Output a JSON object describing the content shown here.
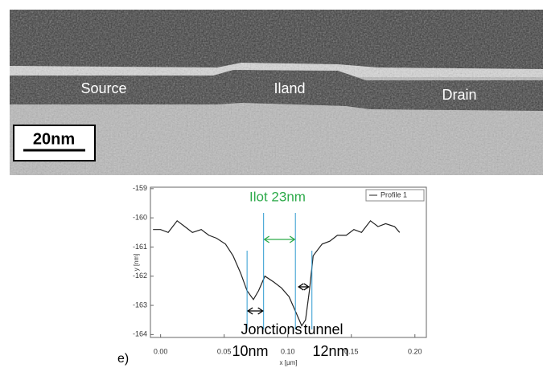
{
  "image": {
    "labels": [
      "Source",
      "Iland",
      "Drain"
    ],
    "scale_bar": "20nm"
  },
  "chart_data": {
    "type": "line",
    "panel_label": "e)",
    "x_label": "x [µm]",
    "y_label": "y [nm]",
    "xlim": [
      -0.008,
      0.209
    ],
    "ylim": [
      -164.1,
      -158.95
    ],
    "xticks": [
      {
        "value": 0,
        "label": "0.00"
      },
      {
        "value": 0.05,
        "label": "0.05"
      },
      {
        "value": 0.1,
        "label": "0.10"
      },
      {
        "value": 0.15,
        "label": "0.15"
      },
      {
        "value": 0.2,
        "label": "0.20"
      }
    ],
    "yticks": [
      -159,
      -160,
      -161,
      -162,
      -163,
      -164
    ],
    "legend": "upper right",
    "series": [
      {
        "name": "Profile 1",
        "color": "#222222",
        "x": [
          -0.006,
          0,
          0.006,
          0.013,
          0.019,
          0.025,
          0.032,
          0.038,
          0.044,
          0.051,
          0.057,
          0.063,
          0.068,
          0.073,
          0.077,
          0.082,
          0.089,
          0.095,
          0.101,
          0.106,
          0.111,
          0.114,
          0.117,
          0.12,
          0.127,
          0.133,
          0.139,
          0.146,
          0.152,
          0.158,
          0.165,
          0.171,
          0.177,
          0.184,
          0.188
        ],
        "values": [
          -160.4,
          -160.4,
          -160.5,
          -160.1,
          -160.3,
          -160.5,
          -160.4,
          -160.6,
          -160.7,
          -160.9,
          -161.3,
          -161.9,
          -162.5,
          -162.8,
          -162.5,
          -162.0,
          -162.2,
          -162.4,
          -162.7,
          -163.2,
          -163.7,
          -163.5,
          -162.5,
          -161.3,
          -160.9,
          -160.8,
          -160.6,
          -160.6,
          -160.4,
          -160.5,
          -160.1,
          -160.3,
          -160.2,
          -160.3,
          -160.5
        ]
      }
    ],
    "marker_lines_x": [
      0.068,
      0.081,
      0.106,
      0.119
    ],
    "marker_color": "#2e9ad0",
    "annotations": {
      "island": "Ilot 23nm",
      "island_color": "#2daa4a",
      "junctions": "Jonctions tunnel",
      "left_junction": "10nm",
      "right_junction": "12nm"
    }
  }
}
